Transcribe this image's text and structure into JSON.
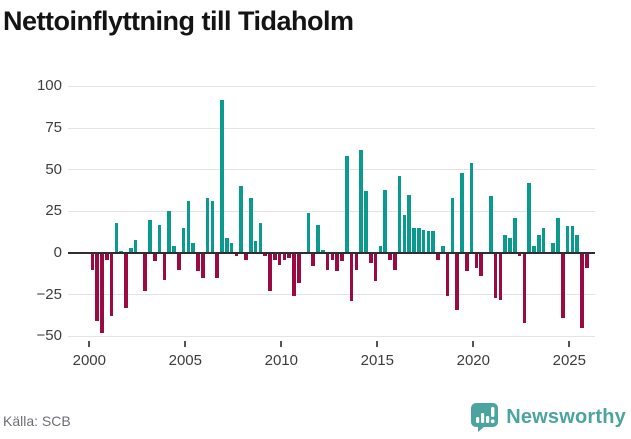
{
  "title": "Nettoinflyttning till Tidaholm",
  "source": "Källa: SCB",
  "brand": {
    "name": "Newsworthy"
  },
  "chart_data": {
    "type": "bar",
    "title": "Nettoinflyttning till Tidaholm",
    "frequency": "quarterly",
    "x_start": "2000 Q1",
    "x_end": "2025 Q4",
    "x_tick_years": [
      2000,
      2005,
      2010,
      2015,
      2020,
      2025
    ],
    "yticks": [
      100,
      75,
      50,
      25,
      0,
      -25,
      -50
    ],
    "ylim": [
      -50,
      100
    ],
    "grid": true,
    "legend": "none",
    "positive_color": "#0a9a8e",
    "negative_color": "#9a0a43",
    "values": [
      -10,
      -41,
      -48,
      -4,
      -38,
      18,
      1,
      -33,
      3,
      8,
      0,
      -23,
      20,
      -5,
      17,
      -16,
      25,
      4,
      -10,
      15,
      31,
      6,
      -11,
      -15,
      33,
      31,
      -15,
      92,
      9,
      6,
      -2,
      40,
      -4,
      33,
      7,
      18,
      -2,
      -23,
      -4,
      -7,
      -4,
      -3,
      -26,
      -18,
      0,
      24,
      -8,
      17,
      2,
      -10,
      -4,
      -11,
      -5,
      58,
      -29,
      -10,
      62,
      37,
      -6,
      -17,
      4,
      38,
      -4,
      -10,
      46,
      23,
      35,
      15,
      15,
      14,
      13,
      13,
      -4,
      4,
      -26,
      33,
      -34,
      48,
      -11,
      54,
      -9,
      -14,
      0,
      34,
      -27,
      -28,
      11,
      9,
      21,
      -2,
      -42,
      42,
      4,
      11,
      15,
      0,
      6,
      21,
      -39,
      16,
      16,
      11,
      -45,
      -9
    ]
  }
}
